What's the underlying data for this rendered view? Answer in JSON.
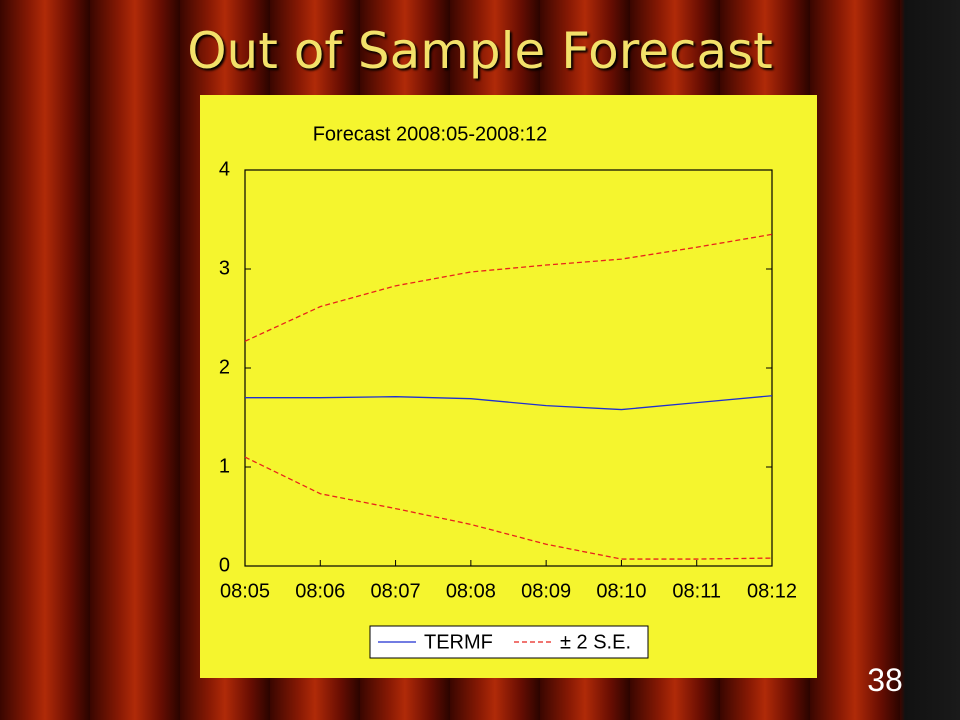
{
  "slide": {
    "title": "Out of Sample Forecast",
    "page_number": "38"
  },
  "chart_data": {
    "type": "line",
    "title": "Forecast 2008:05-2008:12",
    "categories": [
      "08:05",
      "08:06",
      "08:07",
      "08:08",
      "08:09",
      "08:10",
      "08:11",
      "08:12"
    ],
    "series": [
      {
        "name": "TERMF",
        "color": "#1f2fd0",
        "values": [
          1.7,
          1.7,
          1.71,
          1.69,
          1.62,
          1.58,
          1.65,
          1.72
        ]
      },
      {
        "name": "± 2 S.E.",
        "color": "#e8231c",
        "dashed": true,
        "upper": [
          2.27,
          2.62,
          2.83,
          2.97,
          3.04,
          3.1,
          3.22,
          3.35
        ],
        "lower": [
          1.1,
          0.73,
          0.58,
          0.42,
          0.22,
          0.07,
          0.07,
          0.08
        ]
      }
    ],
    "ylim": [
      0,
      4
    ],
    "yticks": [
      0,
      1,
      2,
      3,
      4
    ],
    "grid": false
  }
}
